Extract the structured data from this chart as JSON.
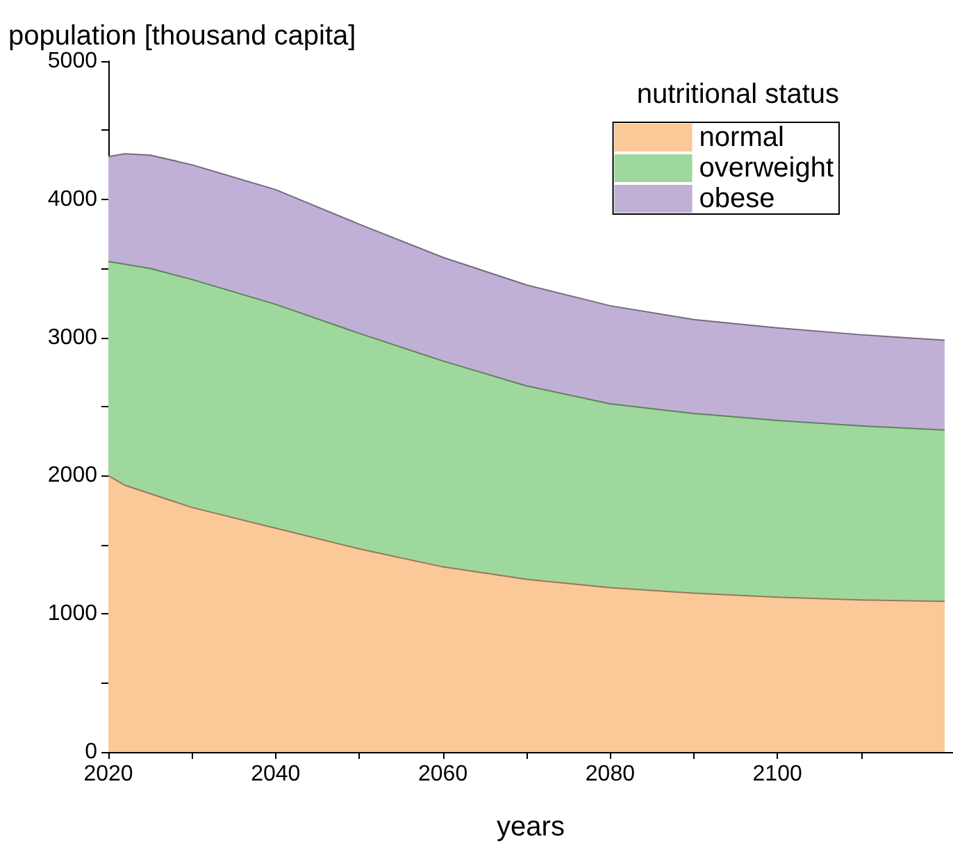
{
  "chart_data": {
    "type": "area",
    "stacked": true,
    "xlabel": "years",
    "ylabel": "population [thousand capita]",
    "legend_title": "nutritional status",
    "legend": "top right",
    "grid": false,
    "marker": "none",
    "x": [
      2020,
      2022,
      2025,
      2030,
      2040,
      2050,
      2060,
      2070,
      2080,
      2090,
      2100,
      2110,
      2120
    ],
    "series": [
      {
        "name": "normal",
        "color": "#fbc898",
        "values": [
          2000,
          1930,
          1870,
          1770,
          1620,
          1470,
          1340,
          1250,
          1190,
          1150,
          1120,
          1100,
          1090
        ]
      },
      {
        "name": "overweight",
        "color": "#9fd89c",
        "values": [
          1550,
          1600,
          1630,
          1650,
          1620,
          1560,
          1490,
          1400,
          1330,
          1300,
          1280,
          1260,
          1240
        ]
      },
      {
        "name": "obese",
        "color": "#c1b0d6",
        "values": [
          760,
          800,
          820,
          830,
          830,
          790,
          750,
          730,
          710,
          680,
          670,
          660,
          650
        ]
      }
    ],
    "xlim": [
      2020,
      2121
    ],
    "xticks": [
      2020,
      {
        "value": 2030,
        "label": null
      },
      2040,
      {
        "value": 2050,
        "label": null
      },
      2060,
      {
        "value": 2070,
        "label": null
      },
      2080,
      {
        "value": 2090,
        "label": null
      },
      2100,
      {
        "value": 2110,
        "label": null
      }
    ],
    "ylim": [
      0,
      5000
    ],
    "yticks": [
      0,
      {
        "value": 500,
        "label": null
      },
      1000,
      {
        "value": 1500,
        "label": null
      },
      2000,
      {
        "value": 2500,
        "label": null
      },
      3000,
      {
        "value": 3500,
        "label": null
      },
      4000,
      {
        "value": 4500,
        "label": null
      },
      5000
    ]
  }
}
